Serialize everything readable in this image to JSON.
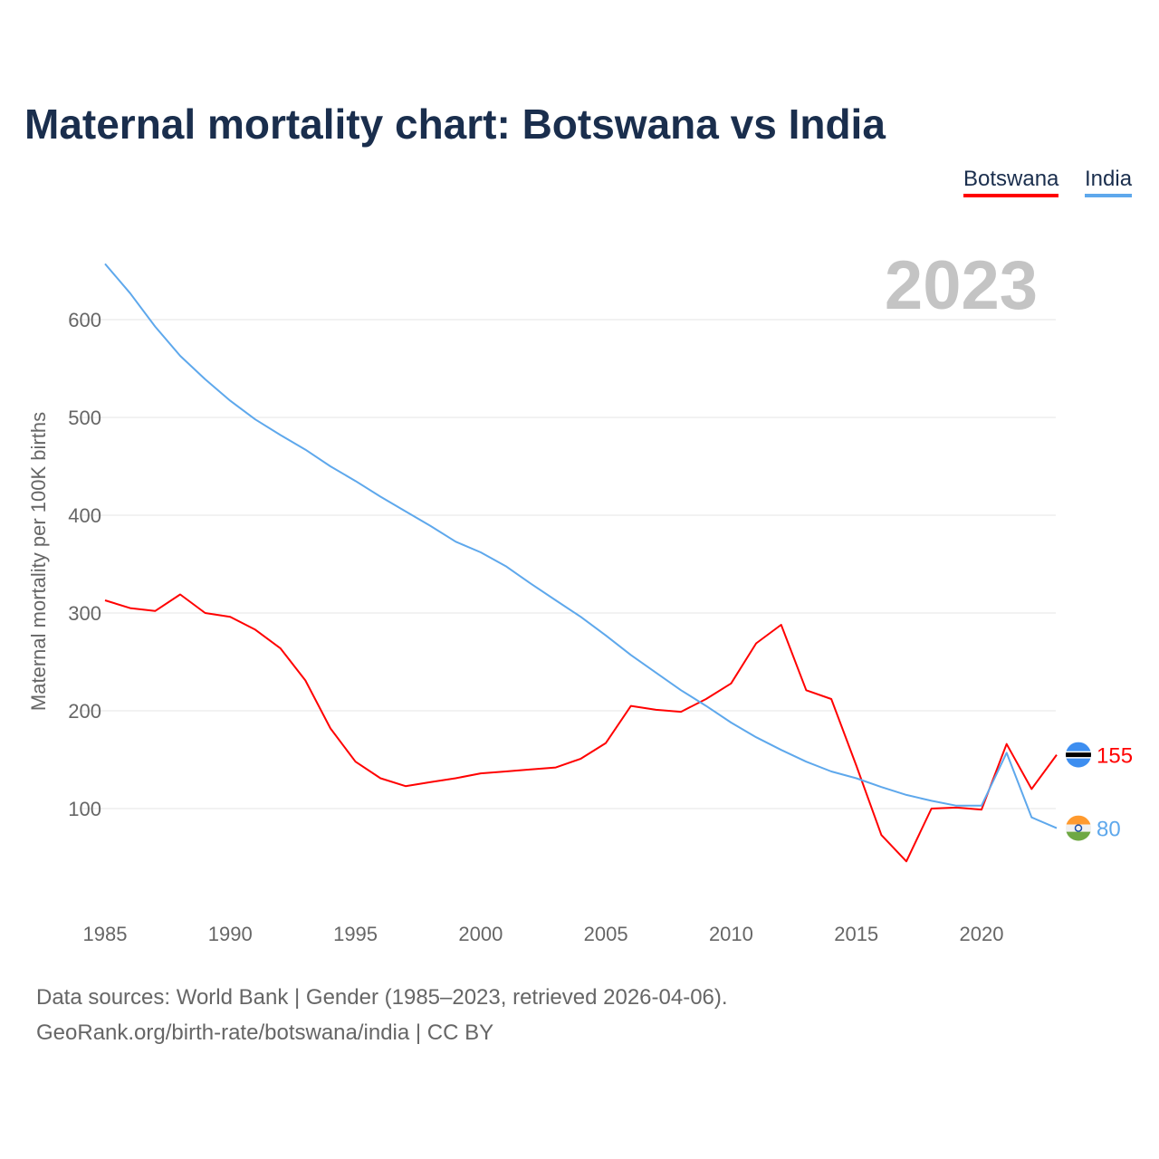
{
  "chart_data": {
    "type": "line",
    "title": "Maternal mortality chart: Botswana vs India",
    "ylabel": "Maternal mortality per 100K births",
    "xlabel": "",
    "year_label": "2023",
    "x": [
      1985,
      1986,
      1987,
      1988,
      1989,
      1990,
      1991,
      1992,
      1993,
      1994,
      1995,
      1996,
      1997,
      1998,
      1999,
      2000,
      2001,
      2002,
      2003,
      2004,
      2005,
      2006,
      2007,
      2008,
      2009,
      2010,
      2011,
      2012,
      2013,
      2014,
      2015,
      2016,
      2017,
      2018,
      2019,
      2020,
      2021,
      2022,
      2023
    ],
    "xticks": [
      "1985",
      "1990",
      "1995",
      "2000",
      "2005",
      "2010",
      "2015",
      "2020"
    ],
    "yticks": [
      "100",
      "200",
      "300",
      "400",
      "500",
      "600"
    ],
    "xlim": [
      1985,
      2023
    ],
    "ylim": [
      0,
      650
    ],
    "grid": true,
    "legend": "top-right",
    "series": [
      {
        "name": "Botswana",
        "color": "#ff0000",
        "end_label": "155",
        "flag": "botswana-flag",
        "values": [
          313,
          305,
          302,
          319,
          300,
          296,
          283,
          264,
          231,
          182,
          148,
          131,
          123,
          127,
          131,
          136,
          138,
          140,
          142,
          151,
          167,
          205,
          201,
          199,
          212,
          228,
          269,
          288,
          221,
          212,
          144,
          73,
          46,
          100,
          101,
          99,
          166,
          120,
          155
        ]
      },
      {
        "name": "India",
        "color": "#5ea8ec",
        "end_label": "80",
        "flag": "india-flag",
        "values": [
          657,
          627,
          593,
          563,
          539,
          517,
          498,
          482,
          467,
          450,
          435,
          419,
          404,
          389,
          373,
          362,
          348,
          330,
          313,
          296,
          277,
          257,
          239,
          221,
          205,
          188,
          173,
          160,
          148,
          138,
          131,
          122,
          114,
          108,
          103,
          103,
          157,
          91,
          80
        ]
      }
    ]
  },
  "source_line1": "Data sources: World Bank | Gender (1985–2023, retrieved 2026-04-06).",
  "source_line2": "GeoRank.org/birth-rate/botswana/india | CC BY"
}
